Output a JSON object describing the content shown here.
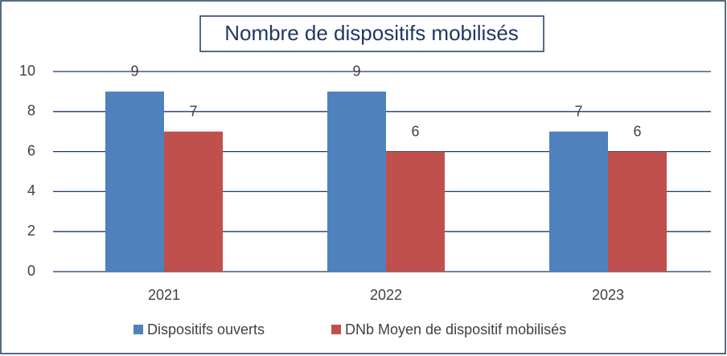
{
  "chart_data": {
    "type": "bar",
    "title": "Nombre de dispositifs mobilisés",
    "categories": [
      "2021",
      "2022",
      "2023"
    ],
    "series": [
      {
        "name": "Dispositifs ouverts",
        "color": "#4f81bd",
        "values": [
          9,
          9,
          7
        ]
      },
      {
        "name": "DNb Moyen de dispositif mobilisés",
        "color": "#c0504d",
        "values": [
          7,
          6,
          6
        ]
      }
    ],
    "ylim": [
      0,
      10
    ],
    "yticks": [
      0,
      2,
      4,
      6,
      8,
      10
    ],
    "grid": true,
    "legend": "bottom"
  }
}
